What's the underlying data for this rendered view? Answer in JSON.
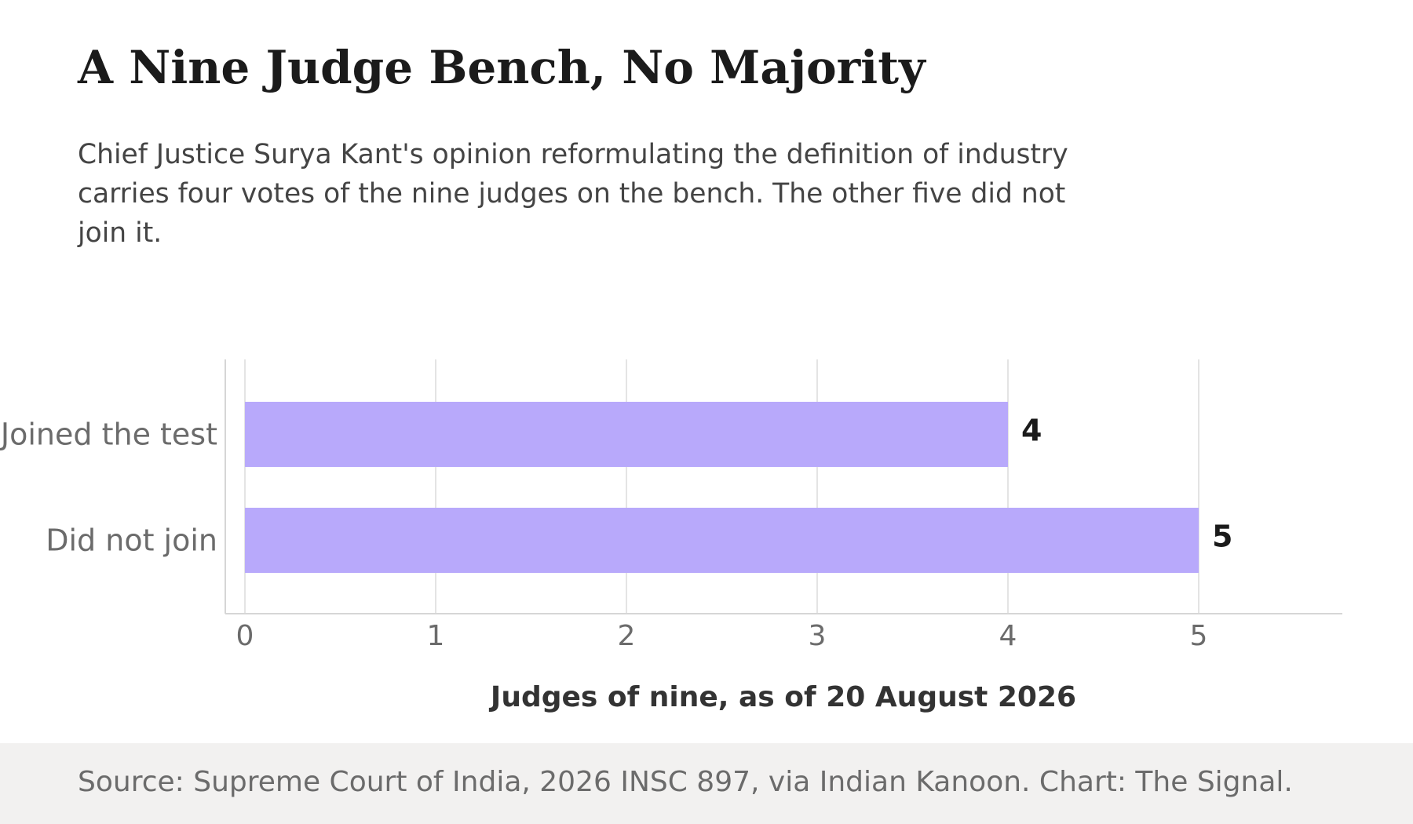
{
  "header": {
    "title": "A Nine Judge Bench, No Majority",
    "subtitle": "Chief Justice Surya Kant's opinion reformulating the definition of industry carries four votes of the nine judges on the bench. The other five did not join it."
  },
  "footer": {
    "source": "Source: Supreme Court of India, 2026 INSC 897, via Indian Kanoon. Chart: The Signal."
  },
  "colors": {
    "bar": "#b8a9fb",
    "grid": "#e4e4e4",
    "axis": "#d6d6d6",
    "tick_label": "#6b6b6b",
    "value_label": "#1b1b1b",
    "axis_title": "#333333",
    "footer_bg": "#f2f1f0"
  },
  "chart_data": {
    "type": "bar",
    "orientation": "horizontal",
    "categories": [
      "Joined the test",
      "Did not join"
    ],
    "values": [
      4,
      5
    ],
    "data_labels": [
      "4",
      "5"
    ],
    "xlabel": "Judges of nine, as of 20 August 2026",
    "ylabel": "",
    "xlim": [
      0,
      5.7
    ],
    "xticks": [
      0,
      1,
      2,
      3,
      4,
      5
    ],
    "grid": "vertical",
    "legend": "none"
  }
}
